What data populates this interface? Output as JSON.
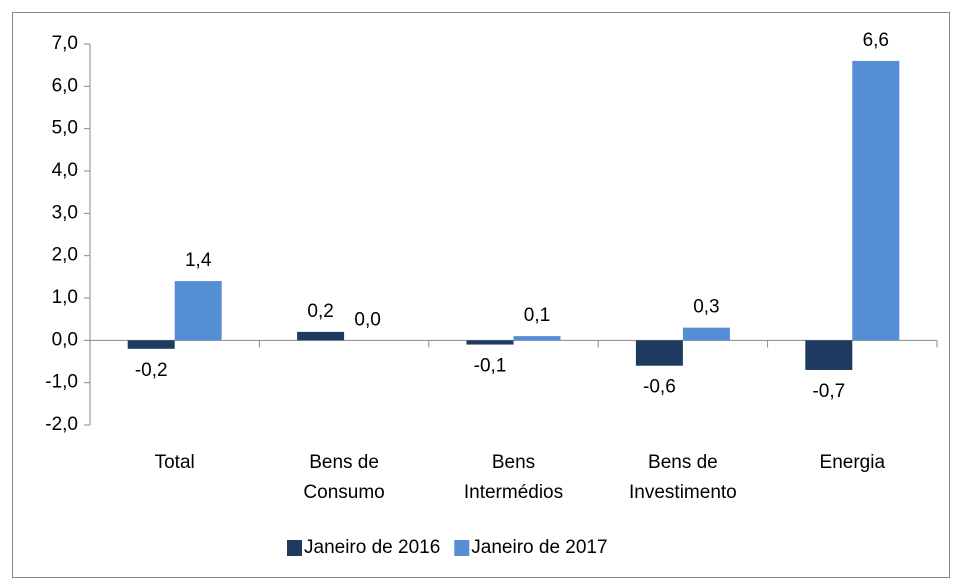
{
  "chart_data": {
    "type": "bar",
    "categories": [
      "Total",
      "Bens de Consumo",
      "Bens Intermédios",
      "Bens de Investimento",
      "Energia"
    ],
    "series": [
      {
        "name": "Janeiro de 2016",
        "color": "#1f3a60",
        "values": [
          -0.2,
          0.2,
          -0.1,
          -0.6,
          -0.7
        ],
        "value_labels": [
          "-0,2",
          "0,2",
          "-0,1",
          "-0,6",
          "-0,7"
        ]
      },
      {
        "name": "Janeiro de 2017",
        "color": "#558ed5",
        "values": [
          1.4,
          0.0,
          0.1,
          0.3,
          6.6
        ],
        "value_labels": [
          "1,4",
          "0,0",
          "0,1",
          "0,3",
          "6,6"
        ]
      }
    ],
    "ylim": [
      -2,
      7
    ],
    "yticks": [
      {
        "value": -2,
        "label": "-2,0"
      },
      {
        "value": -1,
        "label": "-1,0"
      },
      {
        "value": 0,
        "label": "0,0"
      },
      {
        "value": 1,
        "label": "1,0"
      },
      {
        "value": 2,
        "label": "2,0"
      },
      {
        "value": 3,
        "label": "3,0"
      },
      {
        "value": 4,
        "label": "4,0"
      },
      {
        "value": 5,
        "label": "5,0"
      },
      {
        "value": 6,
        "label": "6,0"
      },
      {
        "value": 7,
        "label": "7,0"
      }
    ],
    "legend": "bottom"
  }
}
